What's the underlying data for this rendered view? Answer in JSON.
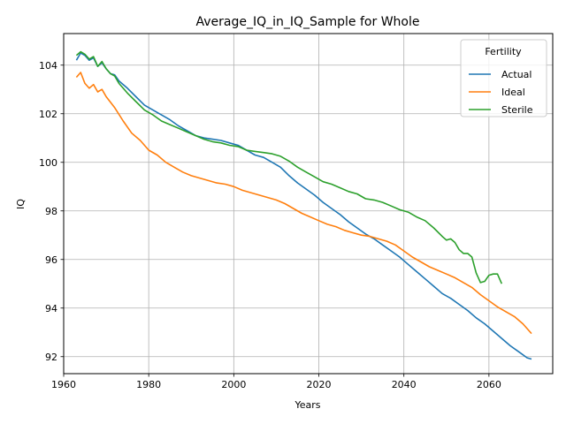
{
  "chart_data": {
    "type": "line",
    "title": "Average_IQ_in_IQ_Sample for Whole",
    "xlabel": "Years",
    "ylabel": "IQ",
    "xlim": [
      1960,
      2075
    ],
    "ylim": [
      91.3,
      105.3
    ],
    "xticks": [
      1960,
      1980,
      2000,
      2020,
      2040,
      2060
    ],
    "yticks": [
      92,
      94,
      96,
      98,
      100,
      102,
      104
    ],
    "grid": true,
    "legend": {
      "title": "Fertility",
      "placement": "top-right"
    },
    "series": [
      {
        "name": "Actual",
        "color": "#1f77b4",
        "points": [
          [
            1963,
            104.2
          ],
          [
            1964,
            104.5
          ],
          [
            1965,
            104.4
          ],
          [
            1966,
            104.2
          ],
          [
            1967,
            104.3
          ],
          [
            1968,
            103.95
          ],
          [
            1969,
            104.1
          ],
          [
            1970,
            103.85
          ],
          [
            1971,
            103.65
          ],
          [
            1972,
            103.6
          ],
          [
            1973,
            103.35
          ],
          [
            1975,
            103.05
          ],
          [
            1977,
            102.7
          ],
          [
            1979,
            102.35
          ],
          [
            1981,
            102.15
          ],
          [
            1983,
            101.95
          ],
          [
            1985,
            101.75
          ],
          [
            1987,
            101.5
          ],
          [
            1989,
            101.3
          ],
          [
            1991,
            101.1
          ],
          [
            1993,
            101.0
          ],
          [
            1995,
            100.95
          ],
          [
            1997,
            100.9
          ],
          [
            1999,
            100.8
          ],
          [
            2001,
            100.7
          ],
          [
            2003,
            100.5
          ],
          [
            2005,
            100.3
          ],
          [
            2007,
            100.2
          ],
          [
            2009,
            100.0
          ],
          [
            2011,
            99.8
          ],
          [
            2013,
            99.45
          ],
          [
            2015,
            99.15
          ],
          [
            2017,
            98.9
          ],
          [
            2019,
            98.65
          ],
          [
            2021,
            98.35
          ],
          [
            2023,
            98.1
          ],
          [
            2025,
            97.85
          ],
          [
            2027,
            97.55
          ],
          [
            2029,
            97.3
          ],
          [
            2031,
            97.05
          ],
          [
            2033,
            96.85
          ],
          [
            2035,
            96.6
          ],
          [
            2037,
            96.35
          ],
          [
            2039,
            96.1
          ],
          [
            2041,
            95.8
          ],
          [
            2043,
            95.5
          ],
          [
            2045,
            95.2
          ],
          [
            2047,
            94.9
          ],
          [
            2049,
            94.6
          ],
          [
            2051,
            94.4
          ],
          [
            2053,
            94.15
          ],
          [
            2055,
            93.9
          ],
          [
            2057,
            93.6
          ],
          [
            2059,
            93.35
          ],
          [
            2061,
            93.05
          ],
          [
            2063,
            92.75
          ],
          [
            2065,
            92.45
          ],
          [
            2067,
            92.2
          ],
          [
            2069,
            91.95
          ],
          [
            2070,
            91.9
          ]
        ]
      },
      {
        "name": "Ideal",
        "color": "#ff7f0e",
        "points": [
          [
            1963,
            103.5
          ],
          [
            1964,
            103.7
          ],
          [
            1965,
            103.25
          ],
          [
            1966,
            103.05
          ],
          [
            1967,
            103.2
          ],
          [
            1968,
            102.9
          ],
          [
            1969,
            103.0
          ],
          [
            1970,
            102.7
          ],
          [
            1972,
            102.25
          ],
          [
            1974,
            101.7
          ],
          [
            1976,
            101.2
          ],
          [
            1978,
            100.9
          ],
          [
            1980,
            100.5
          ],
          [
            1982,
            100.3
          ],
          [
            1984,
            100.0
          ],
          [
            1986,
            99.8
          ],
          [
            1988,
            99.6
          ],
          [
            1990,
            99.45
          ],
          [
            1992,
            99.35
          ],
          [
            1994,
            99.25
          ],
          [
            1996,
            99.15
          ],
          [
            1998,
            99.1
          ],
          [
            2000,
            99.0
          ],
          [
            2002,
            98.85
          ],
          [
            2004,
            98.75
          ],
          [
            2006,
            98.65
          ],
          [
            2008,
            98.55
          ],
          [
            2010,
            98.45
          ],
          [
            2012,
            98.3
          ],
          [
            2014,
            98.1
          ],
          [
            2016,
            97.9
          ],
          [
            2018,
            97.75
          ],
          [
            2020,
            97.6
          ],
          [
            2022,
            97.45
          ],
          [
            2024,
            97.35
          ],
          [
            2026,
            97.2
          ],
          [
            2028,
            97.1
          ],
          [
            2030,
            97.0
          ],
          [
            2032,
            96.95
          ],
          [
            2034,
            96.85
          ],
          [
            2036,
            96.75
          ],
          [
            2038,
            96.6
          ],
          [
            2040,
            96.35
          ],
          [
            2042,
            96.1
          ],
          [
            2044,
            95.9
          ],
          [
            2046,
            95.7
          ],
          [
            2048,
            95.55
          ],
          [
            2050,
            95.4
          ],
          [
            2052,
            95.25
          ],
          [
            2054,
            95.05
          ],
          [
            2056,
            94.85
          ],
          [
            2058,
            94.55
          ],
          [
            2060,
            94.3
          ],
          [
            2062,
            94.05
          ],
          [
            2064,
            93.85
          ],
          [
            2066,
            93.65
          ],
          [
            2068,
            93.35
          ],
          [
            2070,
            92.95
          ]
        ]
      },
      {
        "name": "Sterile",
        "color": "#2ca02c",
        "points": [
          [
            1963,
            104.4
          ],
          [
            1964,
            104.55
          ],
          [
            1965,
            104.45
          ],
          [
            1966,
            104.25
          ],
          [
            1967,
            104.35
          ],
          [
            1968,
            103.95
          ],
          [
            1969,
            104.15
          ],
          [
            1970,
            103.85
          ],
          [
            1971,
            103.65
          ],
          [
            1972,
            103.55
          ],
          [
            1973,
            103.25
          ],
          [
            1975,
            102.85
          ],
          [
            1977,
            102.5
          ],
          [
            1979,
            102.15
          ],
          [
            1981,
            101.95
          ],
          [
            1983,
            101.7
          ],
          [
            1985,
            101.55
          ],
          [
            1987,
            101.4
          ],
          [
            1989,
            101.25
          ],
          [
            1991,
            101.1
          ],
          [
            1993,
            100.95
          ],
          [
            1995,
            100.85
          ],
          [
            1997,
            100.8
          ],
          [
            1999,
            100.7
          ],
          [
            2001,
            100.65
          ],
          [
            2003,
            100.5
          ],
          [
            2005,
            100.45
          ],
          [
            2007,
            100.4
          ],
          [
            2009,
            100.35
          ],
          [
            2011,
            100.25
          ],
          [
            2013,
            100.05
          ],
          [
            2015,
            99.8
          ],
          [
            2017,
            99.6
          ],
          [
            2019,
            99.4
          ],
          [
            2021,
            99.2
          ],
          [
            2023,
            99.1
          ],
          [
            2025,
            98.95
          ],
          [
            2027,
            98.8
          ],
          [
            2029,
            98.7
          ],
          [
            2031,
            98.5
          ],
          [
            2033,
            98.45
          ],
          [
            2035,
            98.35
          ],
          [
            2037,
            98.2
          ],
          [
            2039,
            98.05
          ],
          [
            2041,
            97.95
          ],
          [
            2043,
            97.75
          ],
          [
            2045,
            97.6
          ],
          [
            2047,
            97.3
          ],
          [
            2049,
            96.95
          ],
          [
            2050,
            96.8
          ],
          [
            2051,
            96.85
          ],
          [
            2052,
            96.7
          ],
          [
            2053,
            96.4
          ],
          [
            2054,
            96.25
          ],
          [
            2055,
            96.25
          ],
          [
            2056,
            96.1
          ],
          [
            2057,
            95.45
          ],
          [
            2058,
            95.05
          ],
          [
            2059,
            95.1
          ],
          [
            2060,
            95.35
          ],
          [
            2061,
            95.4
          ],
          [
            2062,
            95.4
          ],
          [
            2063,
            95.0
          ]
        ]
      }
    ]
  }
}
